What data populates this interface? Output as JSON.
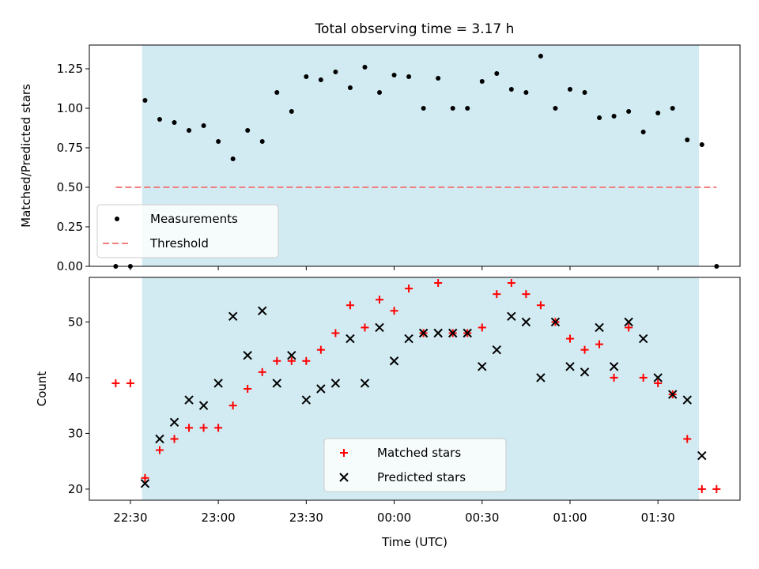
{
  "chart_data": [
    {
      "type": "scatter",
      "title": "Total observing time = 3.17 h",
      "ylabel": "Matched/Predicted stars",
      "xlabel": "",
      "x_unit": "time",
      "ylim": [
        0,
        1.4
      ],
      "yticks": [
        0,
        0.25,
        0.5,
        0.75,
        1.0,
        1.25
      ],
      "ytick_labels": [
        "0.00",
        "0.25",
        "0.50",
        "0.75",
        "1.00",
        "1.25"
      ],
      "xlim": [
        "22:16",
        "01:58"
      ],
      "shaded_range": [
        "22:34",
        "01:44"
      ],
      "shade_color": "#add8e6",
      "legend_position": "lower-left",
      "series": [
        {
          "name": "Measurements",
          "marker": "dot",
          "color": "#000000",
          "points": [
            [
              "22:25",
              0.0
            ],
            [
              "22:30",
              0.0
            ],
            [
              "22:35",
              1.05
            ],
            [
              "22:40",
              0.93
            ],
            [
              "22:45",
              0.91
            ],
            [
              "22:50",
              0.86
            ],
            [
              "22:55",
              0.89
            ],
            [
              "23:00",
              0.79
            ],
            [
              "23:05",
              0.68
            ],
            [
              "23:10",
              0.86
            ],
            [
              "23:15",
              0.79
            ],
            [
              "23:20",
              1.1
            ],
            [
              "23:25",
              0.98
            ],
            [
              "23:30",
              1.2
            ],
            [
              "23:35",
              1.18
            ],
            [
              "23:40",
              1.23
            ],
            [
              "23:45",
              1.13
            ],
            [
              "23:50",
              1.26
            ],
            [
              "23:55",
              1.1
            ],
            [
              "00:00",
              1.21
            ],
            [
              "00:05",
              1.2
            ],
            [
              "00:10",
              1.0
            ],
            [
              "00:15",
              1.19
            ],
            [
              "00:20",
              1.0
            ],
            [
              "00:25",
              1.0
            ],
            [
              "00:30",
              1.17
            ],
            [
              "00:35",
              1.22
            ],
            [
              "00:40",
              1.12
            ],
            [
              "00:45",
              1.1
            ],
            [
              "00:50",
              1.33
            ],
            [
              "00:55",
              1.0
            ],
            [
              "01:00",
              1.12
            ],
            [
              "01:05",
              1.1
            ],
            [
              "01:10",
              0.94
            ],
            [
              "01:15",
              0.95
            ],
            [
              "01:20",
              0.98
            ],
            [
              "01:25",
              0.85
            ],
            [
              "01:30",
              0.97
            ],
            [
              "01:35",
              1.0
            ],
            [
              "01:40",
              0.8
            ],
            [
              "01:45",
              0.77
            ],
            [
              "01:50",
              0.0
            ]
          ]
        },
        {
          "name": "Threshold",
          "marker": "dashed-line",
          "color": "#f08080",
          "points": [
            [
              "22:25",
              0.5
            ],
            [
              "01:50",
              0.5
            ]
          ]
        }
      ]
    },
    {
      "type": "scatter",
      "title": "",
      "ylabel": "Count",
      "xlabel": "Time (UTC)",
      "ylim": [
        18,
        58
      ],
      "yticks": [
        20,
        30,
        40,
        50
      ],
      "ytick_labels": [
        "20",
        "30",
        "40",
        "50"
      ],
      "xlim": [
        "22:16",
        "01:58"
      ],
      "xticks": [
        "22:30",
        "23:00",
        "23:30",
        "00:00",
        "00:30",
        "01:00",
        "01:30"
      ],
      "shaded_range": [
        "22:34",
        "01:44"
      ],
      "shade_color": "#add8e6",
      "legend_position": "lower-center",
      "series": [
        {
          "name": "Matched stars",
          "marker": "plus",
          "color": "#ff0000",
          "points": [
            [
              "22:25",
              39
            ],
            [
              "22:30",
              39
            ],
            [
              "22:35",
              22
            ],
            [
              "22:40",
              27
            ],
            [
              "22:45",
              29
            ],
            [
              "22:50",
              31
            ],
            [
              "22:55",
              31
            ],
            [
              "23:00",
              31
            ],
            [
              "23:05",
              35
            ],
            [
              "23:10",
              38
            ],
            [
              "23:15",
              41
            ],
            [
              "23:20",
              43
            ],
            [
              "23:25",
              43
            ],
            [
              "23:30",
              43
            ],
            [
              "23:35",
              45
            ],
            [
              "23:40",
              48
            ],
            [
              "23:45",
              53
            ],
            [
              "23:50",
              49
            ],
            [
              "23:55",
              54
            ],
            [
              "00:00",
              52
            ],
            [
              "00:05",
              56
            ],
            [
              "00:10",
              48
            ],
            [
              "00:15",
              57
            ],
            [
              "00:20",
              48
            ],
            [
              "00:25",
              48
            ],
            [
              "00:30",
              49
            ],
            [
              "00:35",
              55
            ],
            [
              "00:40",
              57
            ],
            [
              "00:45",
              55
            ],
            [
              "00:50",
              53
            ],
            [
              "00:55",
              50
            ],
            [
              "01:00",
              47
            ],
            [
              "01:05",
              45
            ],
            [
              "01:10",
              46
            ],
            [
              "01:15",
              40
            ],
            [
              "01:20",
              49
            ],
            [
              "01:25",
              40
            ],
            [
              "01:30",
              39
            ],
            [
              "01:35",
              37
            ],
            [
              "01:40",
              29
            ],
            [
              "01:45",
              20
            ],
            [
              "01:50",
              20
            ]
          ]
        },
        {
          "name": "Predicted stars",
          "marker": "x",
          "color": "#000000",
          "points": [
            [
              "22:35",
              21
            ],
            [
              "22:40",
              29
            ],
            [
              "22:45",
              32
            ],
            [
              "22:50",
              36
            ],
            [
              "22:55",
              35
            ],
            [
              "23:00",
              39
            ],
            [
              "23:05",
              51
            ],
            [
              "23:10",
              44
            ],
            [
              "23:15",
              52
            ],
            [
              "23:20",
              39
            ],
            [
              "23:25",
              44
            ],
            [
              "23:30",
              36
            ],
            [
              "23:35",
              38
            ],
            [
              "23:40",
              39
            ],
            [
              "23:45",
              47
            ],
            [
              "23:50",
              39
            ],
            [
              "23:55",
              49
            ],
            [
              "00:00",
              43
            ],
            [
              "00:05",
              47
            ],
            [
              "00:10",
              48
            ],
            [
              "00:15",
              48
            ],
            [
              "00:20",
              48
            ],
            [
              "00:25",
              48
            ],
            [
              "00:30",
              42
            ],
            [
              "00:35",
              45
            ],
            [
              "00:40",
              51
            ],
            [
              "00:45",
              50
            ],
            [
              "00:50",
              40
            ],
            [
              "00:55",
              50
            ],
            [
              "01:00",
              42
            ],
            [
              "01:05",
              41
            ],
            [
              "01:10",
              49
            ],
            [
              "01:15",
              42
            ],
            [
              "01:20",
              50
            ],
            [
              "01:25",
              47
            ],
            [
              "01:30",
              40
            ],
            [
              "01:35",
              37
            ],
            [
              "01:40",
              36
            ],
            [
              "01:45",
              26
            ]
          ]
        }
      ]
    }
  ]
}
